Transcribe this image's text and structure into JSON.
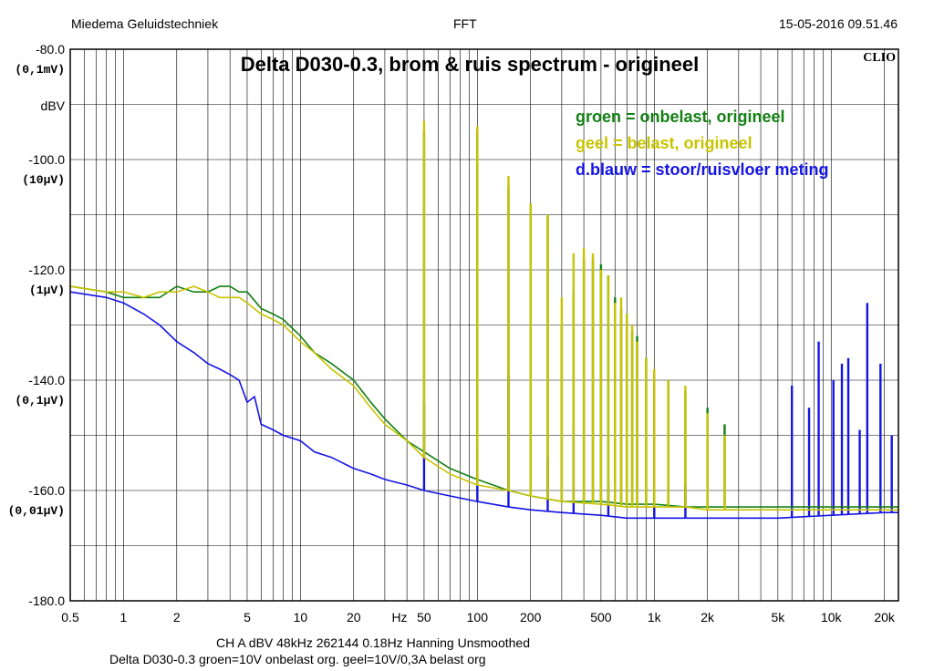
{
  "header": {
    "left": "Miedema Geluidstechniek",
    "center": "FFT",
    "right": "15-05-2016 09.51.46"
  },
  "footer": {
    "line1": "CH A   dBV   48kHz   262144   0.18Hz   Hanning   Unsmoothed",
    "line2": "Delta D030-0.3  groen=10V onbelast org. geel=10V/0,3A belast org"
  },
  "logo": "CLIO",
  "chart_data": {
    "type": "line",
    "title": "Delta D030-0.3, brom & ruis spectrum  -  origineel",
    "xlabel": "Hz",
    "ylabel": "dBV",
    "x_scale": "log",
    "xlim": [
      0.5,
      24000
    ],
    "ylim": [
      -180,
      -80
    ],
    "x_tick_labels": [
      {
        "v": 0.5,
        "t": "0.5"
      },
      {
        "v": 1,
        "t": "1"
      },
      {
        "v": 2,
        "t": "2"
      },
      {
        "v": 5,
        "t": "5"
      },
      {
        "v": 10,
        "t": "10"
      },
      {
        "v": 20,
        "t": "20"
      },
      {
        "v": 50,
        "t": "50"
      },
      {
        "v": 100,
        "t": "100"
      },
      {
        "v": 200,
        "t": "200"
      },
      {
        "v": 500,
        "t": "500"
      },
      {
        "v": 1000,
        "t": "1k"
      },
      {
        "v": 2000,
        "t": "2k"
      },
      {
        "v": 5000,
        "t": "5k"
      },
      {
        "v": 10000,
        "t": "10k"
      },
      {
        "v": 20000,
        "t": "20k"
      }
    ],
    "y_ticks": [
      {
        "v": -80,
        "t": "-80.0",
        "sub": "(0,1mV)"
      },
      {
        "v": -100,
        "t": "-100.0",
        "sub": "(10μV)"
      },
      {
        "v": -120,
        "t": "-120.0",
        "sub": "(1μV)"
      },
      {
        "v": -140,
        "t": "-140.0",
        "sub": "(0,1μV)"
      },
      {
        "v": -160,
        "t": "-160.0",
        "sub": "(0,01μV)"
      },
      {
        "v": -180,
        "t": "-180.0",
        "sub": ""
      }
    ],
    "grid": true,
    "legend_position": "top-right",
    "legend": [
      {
        "text": "groen = onbelast, origineel",
        "color": "#138013"
      },
      {
        "text": "geel    = belast, origineel",
        "color": "#c8c400"
      },
      {
        "text": "d.blauw = stoor/ruisvloer meting",
        "color": "#1414e6"
      }
    ],
    "series": [
      {
        "color": "#1414e6",
        "x": [
          0.5,
          0.8,
          1,
          1.3,
          1.6,
          2,
          2.5,
          3,
          3.5,
          4,
          4.5,
          5,
          5.5,
          6,
          7,
          8,
          10,
          12,
          15,
          20,
          25,
          30,
          40,
          50,
          70,
          100,
          150,
          200,
          300,
          500,
          700,
          1000,
          2000,
          5000,
          10000,
          20000,
          24000
        ],
        "y": [
          -124,
          -125,
          -126,
          -128,
          -130,
          -133,
          -135,
          -137,
          -138,
          -139,
          -140,
          -144,
          -143,
          -148,
          -149,
          -150,
          -151,
          -153,
          -154,
          -156,
          -157,
          -158,
          -159,
          -160,
          -161,
          -162,
          -163,
          -163.5,
          -164,
          -164.5,
          -165,
          -165,
          -165,
          -165,
          -164.5,
          -164,
          -164
        ],
        "peaks": [
          {
            "x": 50,
            "y": -144
          },
          {
            "x": 100,
            "y": -152
          },
          {
            "x": 150,
            "y": -139
          },
          {
            "x": 250,
            "y": -154
          },
          {
            "x": 350,
            "y": -149
          },
          {
            "x": 550,
            "y": -159
          },
          {
            "x": 1000,
            "y": -155
          },
          {
            "x": 1500,
            "y": -159
          },
          {
            "x": 6000,
            "y": -141
          },
          {
            "x": 7500,
            "y": -145
          },
          {
            "x": 8500,
            "y": -133
          },
          {
            "x": 10300,
            "y": -140
          },
          {
            "x": 11500,
            "y": -137
          },
          {
            "x": 12500,
            "y": -136
          },
          {
            "x": 14500,
            "y": -149
          },
          {
            "x": 16000,
            "y": -126
          },
          {
            "x": 19000,
            "y": -137
          },
          {
            "x": 22000,
            "y": -150
          }
        ]
      },
      {
        "color": "#138013",
        "x": [
          0.5,
          0.8,
          1,
          1.3,
          1.6,
          2,
          2.5,
          3,
          3.5,
          4,
          4.5,
          5,
          6,
          7,
          8,
          10,
          12,
          15,
          20,
          25,
          30,
          40,
          50,
          70,
          100,
          150,
          200,
          300,
          500,
          700,
          1000,
          1500,
          2000,
          3000,
          5000,
          7000,
          10000,
          15000,
          20000,
          24000
        ],
        "y": [
          -123,
          -124,
          -125,
          -125,
          -125,
          -123,
          -124,
          -124,
          -123,
          -123,
          -124,
          -124,
          -127,
          -128,
          -129,
          -132,
          -135,
          -137,
          -140,
          -144,
          -147,
          -151,
          -153,
          -156,
          -158,
          -160,
          -161,
          -162,
          -162,
          -162.5,
          -162.5,
          -163,
          -163,
          -163,
          -163,
          -163,
          -163,
          -163,
          -163,
          -163
        ],
        "peaks": [
          {
            "x": 50,
            "y": -95
          },
          {
            "x": 100,
            "y": -95
          },
          {
            "x": 150,
            "y": -105
          },
          {
            "x": 200,
            "y": -108
          },
          {
            "x": 250,
            "y": -110
          },
          {
            "x": 300,
            "y": -130
          },
          {
            "x": 350,
            "y": -124
          },
          {
            "x": 400,
            "y": -118
          },
          {
            "x": 450,
            "y": -118
          },
          {
            "x": 500,
            "y": -119
          },
          {
            "x": 550,
            "y": -121
          },
          {
            "x": 600,
            "y": -125
          },
          {
            "x": 650,
            "y": -127
          },
          {
            "x": 700,
            "y": -128
          },
          {
            "x": 750,
            "y": -131
          },
          {
            "x": 800,
            "y": -132
          },
          {
            "x": 900,
            "y": -136
          },
          {
            "x": 1000,
            "y": -139
          },
          {
            "x": 1200,
            "y": -140
          },
          {
            "x": 1500,
            "y": -142
          },
          {
            "x": 2000,
            "y": -145
          },
          {
            "x": 2500,
            "y": -148
          }
        ]
      },
      {
        "color": "#c8c400",
        "x": [
          0.5,
          0.8,
          1,
          1.3,
          1.6,
          2,
          2.5,
          3,
          3.5,
          4,
          4.5,
          5,
          6,
          7,
          8,
          10,
          12,
          15,
          20,
          25,
          30,
          40,
          50,
          70,
          100,
          150,
          200,
          300,
          500,
          700,
          1000,
          1500,
          2000,
          3000,
          5000,
          7000,
          10000,
          15000,
          20000,
          24000
        ],
        "y": [
          -123,
          -124,
          -124,
          -125,
          -124,
          -124,
          -123,
          -124,
          -125,
          -125,
          -125,
          -126,
          -128,
          -129,
          -130,
          -133,
          -135,
          -138,
          -141,
          -145,
          -148,
          -151,
          -154,
          -157,
          -159,
          -160,
          -161,
          -162,
          -162.5,
          -163,
          -163,
          -163,
          -163.5,
          -163.5,
          -163.5,
          -163.5,
          -163.5,
          -163.5,
          -163.5,
          -163.5
        ],
        "peaks": [
          {
            "x": 50,
            "y": -93
          },
          {
            "x": 100,
            "y": -94
          },
          {
            "x": 150,
            "y": -103
          },
          {
            "x": 200,
            "y": -108
          },
          {
            "x": 250,
            "y": -110
          },
          {
            "x": 300,
            "y": -125
          },
          {
            "x": 350,
            "y": -117
          },
          {
            "x": 400,
            "y": -116
          },
          {
            "x": 450,
            "y": -117
          },
          {
            "x": 500,
            "y": -120
          },
          {
            "x": 550,
            "y": -121
          },
          {
            "x": 600,
            "y": -126
          },
          {
            "x": 650,
            "y": -125
          },
          {
            "x": 700,
            "y": -128
          },
          {
            "x": 750,
            "y": -130
          },
          {
            "x": 800,
            "y": -133
          },
          {
            "x": 900,
            "y": -136
          },
          {
            "x": 1000,
            "y": -138
          },
          {
            "x": 1200,
            "y": -140
          },
          {
            "x": 1500,
            "y": -141
          },
          {
            "x": 2000,
            "y": -146
          },
          {
            "x": 2500,
            "y": -150
          }
        ]
      }
    ]
  }
}
